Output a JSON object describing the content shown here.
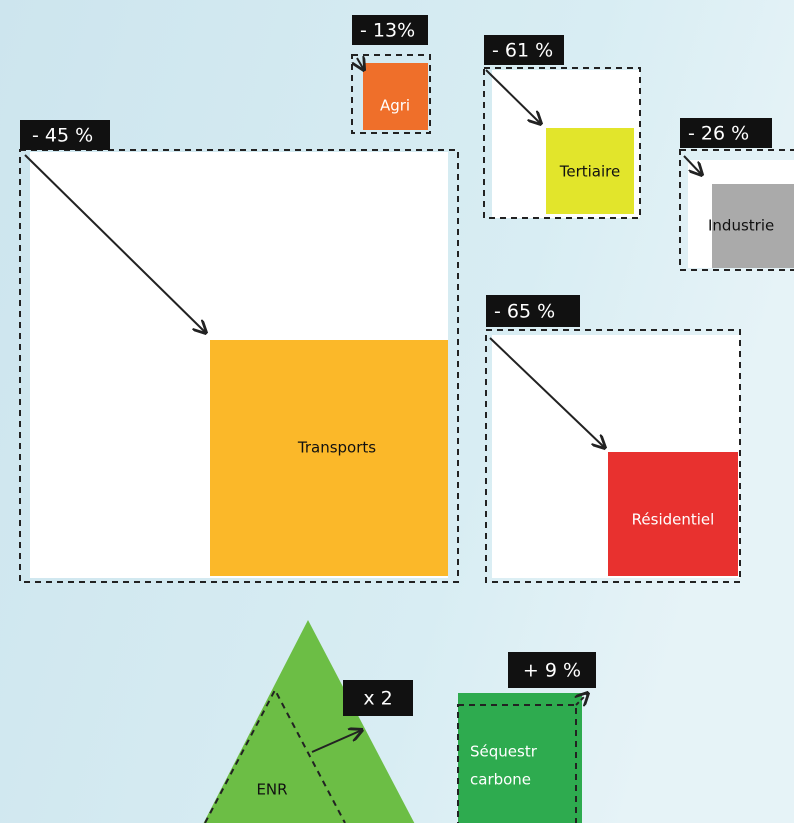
{
  "nodes": [
    {
      "change": "- 45 %",
      "label": "Transports"
    },
    {
      "change": "- 13%",
      "label": "Agri"
    },
    {
      "change": "- 61 %",
      "label": "Tertiaire"
    },
    {
      "change": "- 26 %",
      "label": "Industrie"
    },
    {
      "change": "- 65 %",
      "label": "Résidentiel"
    },
    {
      "change": "x 2",
      "label": "ENR"
    },
    {
      "change": "+ 9 %",
      "label": [
        "Séquestr",
        "carbone"
      ]
    }
  ]
}
